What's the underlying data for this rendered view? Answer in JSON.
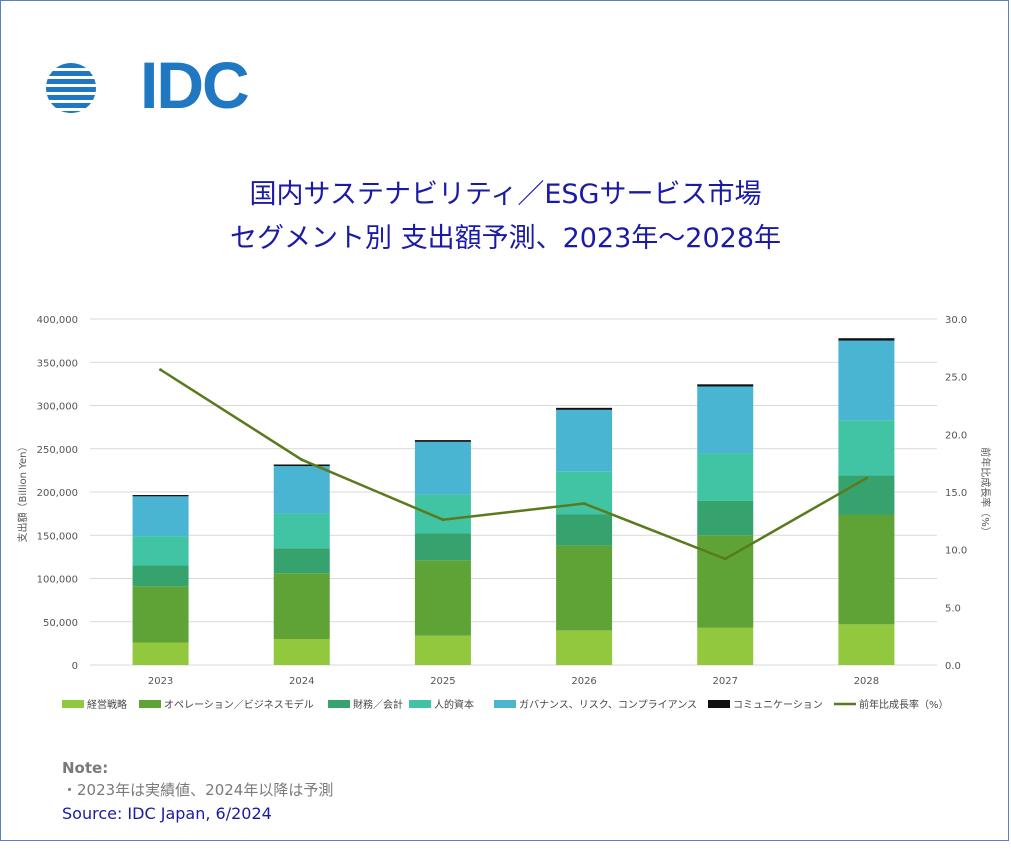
{
  "logo": {
    "text": "IDC"
  },
  "title": {
    "line1": "国内サステナビリティ／ESGサービス市場",
    "line2": "セグメント別 支出額予測、2023年～2028年"
  },
  "notes": {
    "label": "Note:",
    "items": [
      "・2023年は実績値、2024年以降は予測"
    ],
    "source": "Source: IDC Japan, 6/2024"
  },
  "chart_data": {
    "type": "bar",
    "stacked": true,
    "categories": [
      "2023",
      "2024",
      "2025",
      "2026",
      "2027",
      "2028"
    ],
    "ylabel": "支出額（Billion Yen）",
    "y2label": "前年比成長率（%）",
    "ylim": [
      0,
      400000
    ],
    "y2lim": [
      0,
      30
    ],
    "yticks": [
      "0",
      "50,000",
      "100,000",
      "150,000",
      "200,000",
      "250,000",
      "300,000",
      "350,000",
      "400,000"
    ],
    "y2ticks": [
      "0.0",
      "5.0",
      "10.0",
      "15.0",
      "20.0",
      "25.0",
      "30.0"
    ],
    "grid": true,
    "legend_position": "bottom",
    "series": [
      {
        "name": "経営戦略",
        "color": "#92c83e",
        "values": [
          26000,
          30000,
          34000,
          40000,
          43000,
          47000
        ]
      },
      {
        "name": "オペレーション／ビジネスモデル",
        "color": "#5fa336",
        "values": [
          65000,
          76000,
          87000,
          98000,
          107000,
          127000
        ]
      },
      {
        "name": "財務／会計",
        "color": "#36a36e",
        "values": [
          24000,
          29000,
          31000,
          36000,
          40000,
          45000
        ]
      },
      {
        "name": "人的資本",
        "color": "#41c4a3",
        "values": [
          34000,
          40000,
          45000,
          50000,
          55000,
          64000
        ]
      },
      {
        "name": "ガバナンス、リスク、コンプライアンス",
        "color": "#4ab4d3",
        "values": [
          46000,
          55000,
          61000,
          71000,
          77000,
          92000
        ]
      },
      {
        "name": "コミュニケーション",
        "color": "#111111",
        "values": [
          1500,
          1800,
          2000,
          2300,
          2500,
          2800
        ]
      }
    ],
    "line_series": {
      "name": "前年比成長率（%）",
      "color": "#5a7a1e",
      "axis": "right",
      "values": [
        25.6,
        17.8,
        12.6,
        14.0,
        9.2,
        16.2
      ]
    }
  }
}
